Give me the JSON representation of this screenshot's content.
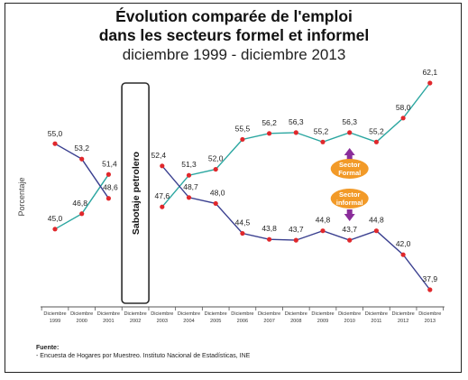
{
  "chart_data": {
    "type": "line",
    "title_line1": "Évolution comparée de l'emploi",
    "title_line2": "dans les secteurs formel et informel",
    "subtitle": "diciembre 1999 - diciembre 2013",
    "ylabel": "Porcentaje",
    "ylim": [
      35,
      65
    ],
    "grid": false,
    "categories": [
      [
        "Diciembre",
        "1999"
      ],
      [
        "Diciembre",
        "2000"
      ],
      [
        "Diciembre",
        "2001"
      ],
      [
        "Diciembre",
        "2002"
      ],
      [
        "Diciembre",
        "2003"
      ],
      [
        "Diciembre",
        "2004"
      ],
      [
        "Diciembre",
        "2005"
      ],
      [
        "Diciembre",
        "2006"
      ],
      [
        "Diciembre",
        "2007"
      ],
      [
        "Diciembre",
        "2008"
      ],
      [
        "Diciembre",
        "2009"
      ],
      [
        "Diciembre",
        "2010"
      ],
      [
        "Diciembre",
        "2011"
      ],
      [
        "Diciembre",
        "2012"
      ],
      [
        "Diciembre",
        "2013"
      ]
    ],
    "series": [
      {
        "name": "Sector Formal",
        "color": "#2aa6a0",
        "values": [
          45.0,
          46.8,
          51.4,
          null,
          47.6,
          51.3,
          52.0,
          55.5,
          56.2,
          56.3,
          55.2,
          56.3,
          55.2,
          58.0,
          62.1
        ],
        "labels": [
          "45,0",
          "46,8",
          "51,4",
          "",
          "47,6",
          "51,3",
          "52,0",
          "55,5",
          "56,2",
          "56,3",
          "55,2",
          "56,3",
          "55,2",
          "58,0",
          "62,1"
        ]
      },
      {
        "name": "Sector informal",
        "color": "#3a3f8f",
        "values": [
          55.0,
          53.2,
          48.6,
          null,
          52.4,
          48.7,
          48.0,
          44.5,
          43.8,
          43.7,
          44.8,
          43.7,
          44.8,
          42.0,
          37.9
        ],
        "labels": [
          "55,0",
          "53,2",
          "48,6",
          "",
          "52,4",
          "48,7",
          "48,0",
          "44,5",
          "43,8",
          "43,7",
          "44,8",
          "43,7",
          "44,8",
          "42,0",
          "37,9"
        ]
      }
    ],
    "annotation": "Sabotaje petrolero",
    "annotation_category_index": 3,
    "callouts": [
      {
        "text_line1": "Sector",
        "text_line2": "Formal",
        "series": 0,
        "arrow": "up"
      },
      {
        "text_line1": "Sector",
        "text_line2": "informal",
        "series": 1,
        "arrow": "down"
      }
    ],
    "marker_color": "#e0282c",
    "callout_color": "#f29a28",
    "arrow_color": "#8a2d9a"
  },
  "source": {
    "label": "Fuente:",
    "text": "- Encuesta de Hogares por Muestreo. Instituto Nacional de Estadísticas, INE"
  }
}
